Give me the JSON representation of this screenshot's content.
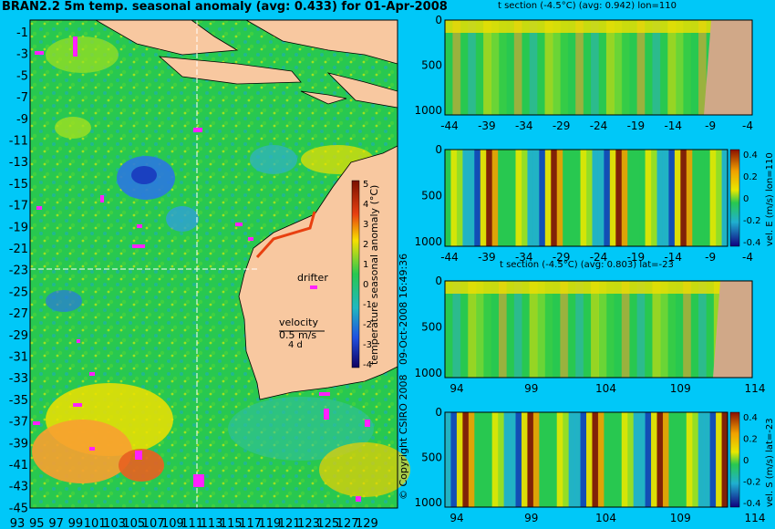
{
  "title": "BRAN2.2 5m temp. seasonal anomaly (avg: 0.433) for 01-Apr-2008",
  "map": {
    "lat_ticks": [
      "-1",
      "-3",
      "-5",
      "-7",
      "-9",
      "-11",
      "-13",
      "-15",
      "-17",
      "-19",
      "-21",
      "-23",
      "-25",
      "-27",
      "-29",
      "-31",
      "-33",
      "-35",
      "-37",
      "-39",
      "-41",
      "-43",
      "-45"
    ],
    "lon_ticks": [
      "93",
      "95",
      "97",
      "99",
      "101",
      "103",
      "105",
      "107",
      "109",
      "111",
      "113",
      "115",
      "117",
      "119",
      "121",
      "123",
      "125",
      "127",
      "129"
    ],
    "drifter_label": "drifter",
    "velocity_label": "velocity",
    "velocity_value": "0.5 m/s",
    "velocity_age": "4 d",
    "colorbar_label": "temperature seasonal anomaly (°C)",
    "colorbar_ticks": [
      "5",
      "4",
      "3",
      "2",
      "1",
      "0",
      "-1",
      "-2",
      "-3",
      "-4"
    ],
    "timestamp": "09-Oct-2008 16:49:36",
    "copyright": "© Copyright CSIRO 2008",
    "colors": {
      "land": "#f8c8a0",
      "water_bg": "#28c850",
      "frame_bg": "#00c8f8",
      "drifter": "#ff20ff"
    }
  },
  "chart_data": [
    {
      "type": "heatmap",
      "title": "t section (-4.5°C) (avg: 0.942) lon=110",
      "x_ticks": [
        "-44",
        "-39",
        "-34",
        "-29",
        "-24",
        "-19",
        "-14",
        "-9",
        "-4"
      ],
      "y_ticks": [
        "0",
        "500",
        "1000"
      ],
      "ylim": [
        0,
        1050
      ]
    },
    {
      "type": "heatmap",
      "x_ticks": [
        "-44",
        "-39",
        "-34",
        "-29",
        "-24",
        "-19",
        "-14",
        "-9",
        "-4"
      ],
      "y_ticks": [
        "0",
        "500",
        "1000"
      ],
      "ylim": [
        0,
        1050
      ],
      "colorbar_label": "vel. E (m/s) lon=110",
      "colorbar_ticks": [
        "0.4",
        "0.2",
        "0",
        "-0.2",
        "-0.4"
      ]
    },
    {
      "type": "heatmap",
      "title": "t section (-4.5°C) (avg: 0.803) lat=-23",
      "x_ticks": [
        "94",
        "99",
        "104",
        "109",
        "114"
      ],
      "y_ticks": [
        "0",
        "500",
        "1000"
      ],
      "ylim": [
        0,
        1050
      ]
    },
    {
      "type": "heatmap",
      "x_ticks": [
        "94",
        "99",
        "104",
        "109",
        "114"
      ],
      "y_ticks": [
        "0",
        "500",
        "1000"
      ],
      "ylim": [
        0,
        1050
      ],
      "colorbar_label": "vel. S (m/s) lat=-23",
      "colorbar_ticks": [
        "0.4",
        "0.2",
        "0",
        "-0.2",
        "-0.4"
      ]
    }
  ]
}
